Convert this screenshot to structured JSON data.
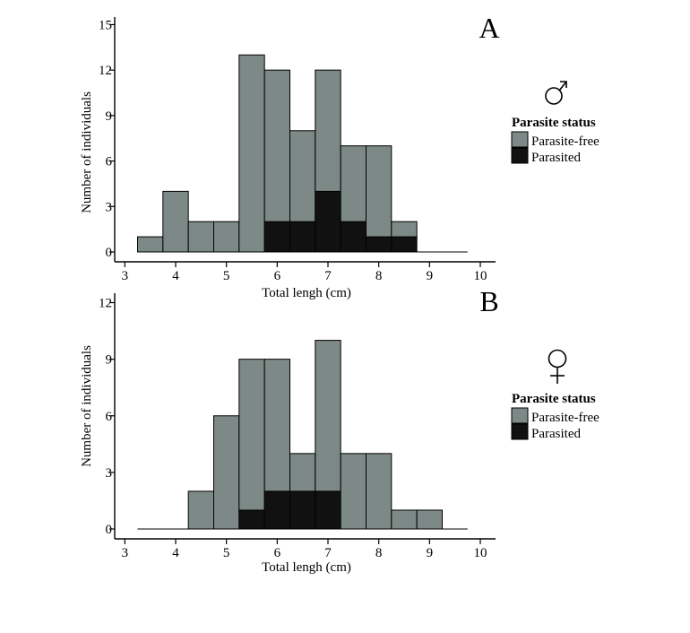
{
  "chart_data": [
    {
      "panel": "A",
      "type": "bar",
      "stacked": true,
      "sex_symbol": "♂",
      "bin_width": 0.5,
      "x": [
        3.5,
        4.0,
        4.5,
        5.0,
        5.5,
        6.0,
        6.5,
        7.0,
        7.5,
        8.0,
        8.5,
        9.0,
        9.5
      ],
      "series": [
        {
          "name": "Parasited",
          "color": "#111111",
          "values": [
            0,
            0,
            0,
            0,
            0,
            2,
            2,
            4,
            2,
            1,
            1,
            0,
            0
          ]
        },
        {
          "name": "Parasite-free",
          "color": "#7d8986",
          "values": [
            1,
            4,
            2,
            2,
            13,
            10,
            6,
            8,
            5,
            6,
            1,
            0,
            0
          ]
        }
      ],
      "xlabel": "Total lengh (cm)",
      "ylabel": "Number of individuals",
      "xlim": [
        2.8,
        10.3
      ],
      "ylim": [
        0,
        15.5
      ],
      "xticks": [
        3,
        4,
        5,
        6,
        7,
        8,
        9,
        10
      ],
      "yticks": [
        0,
        3,
        6,
        9,
        12,
        15
      ],
      "legend": {
        "title": "Parasite status",
        "entries": [
          "Parasite-free",
          "Parasited"
        ],
        "placement": "right"
      }
    },
    {
      "panel": "B",
      "type": "bar",
      "stacked": true,
      "sex_symbol": "♀",
      "bin_width": 0.5,
      "x": [
        3.5,
        4.0,
        4.5,
        5.0,
        5.5,
        6.0,
        6.5,
        7.0,
        7.5,
        8.0,
        8.5,
        9.0,
        9.5
      ],
      "series": [
        {
          "name": "Parasited",
          "color": "#111111",
          "values": [
            0,
            0,
            0,
            0,
            1,
            2,
            2,
            2,
            0,
            0,
            0,
            0,
            0
          ]
        },
        {
          "name": "Parasite-free",
          "color": "#7d8986",
          "values": [
            0,
            0,
            2,
            6,
            8,
            7,
            2,
            8,
            4,
            4,
            1,
            1,
            0
          ]
        }
      ],
      "xlabel": "Total lengh (cm)",
      "ylabel": "Number of individuals",
      "xlim": [
        2.8,
        10.3
      ],
      "ylim": [
        0,
        12.5
      ],
      "xticks": [
        3,
        4,
        5,
        6,
        7,
        8,
        9,
        10
      ],
      "yticks": [
        0,
        3,
        6,
        9,
        12
      ],
      "legend": {
        "title": "Parasite status",
        "entries": [
          "Parasite-free",
          "Parasited"
        ],
        "placement": "right"
      }
    }
  ]
}
